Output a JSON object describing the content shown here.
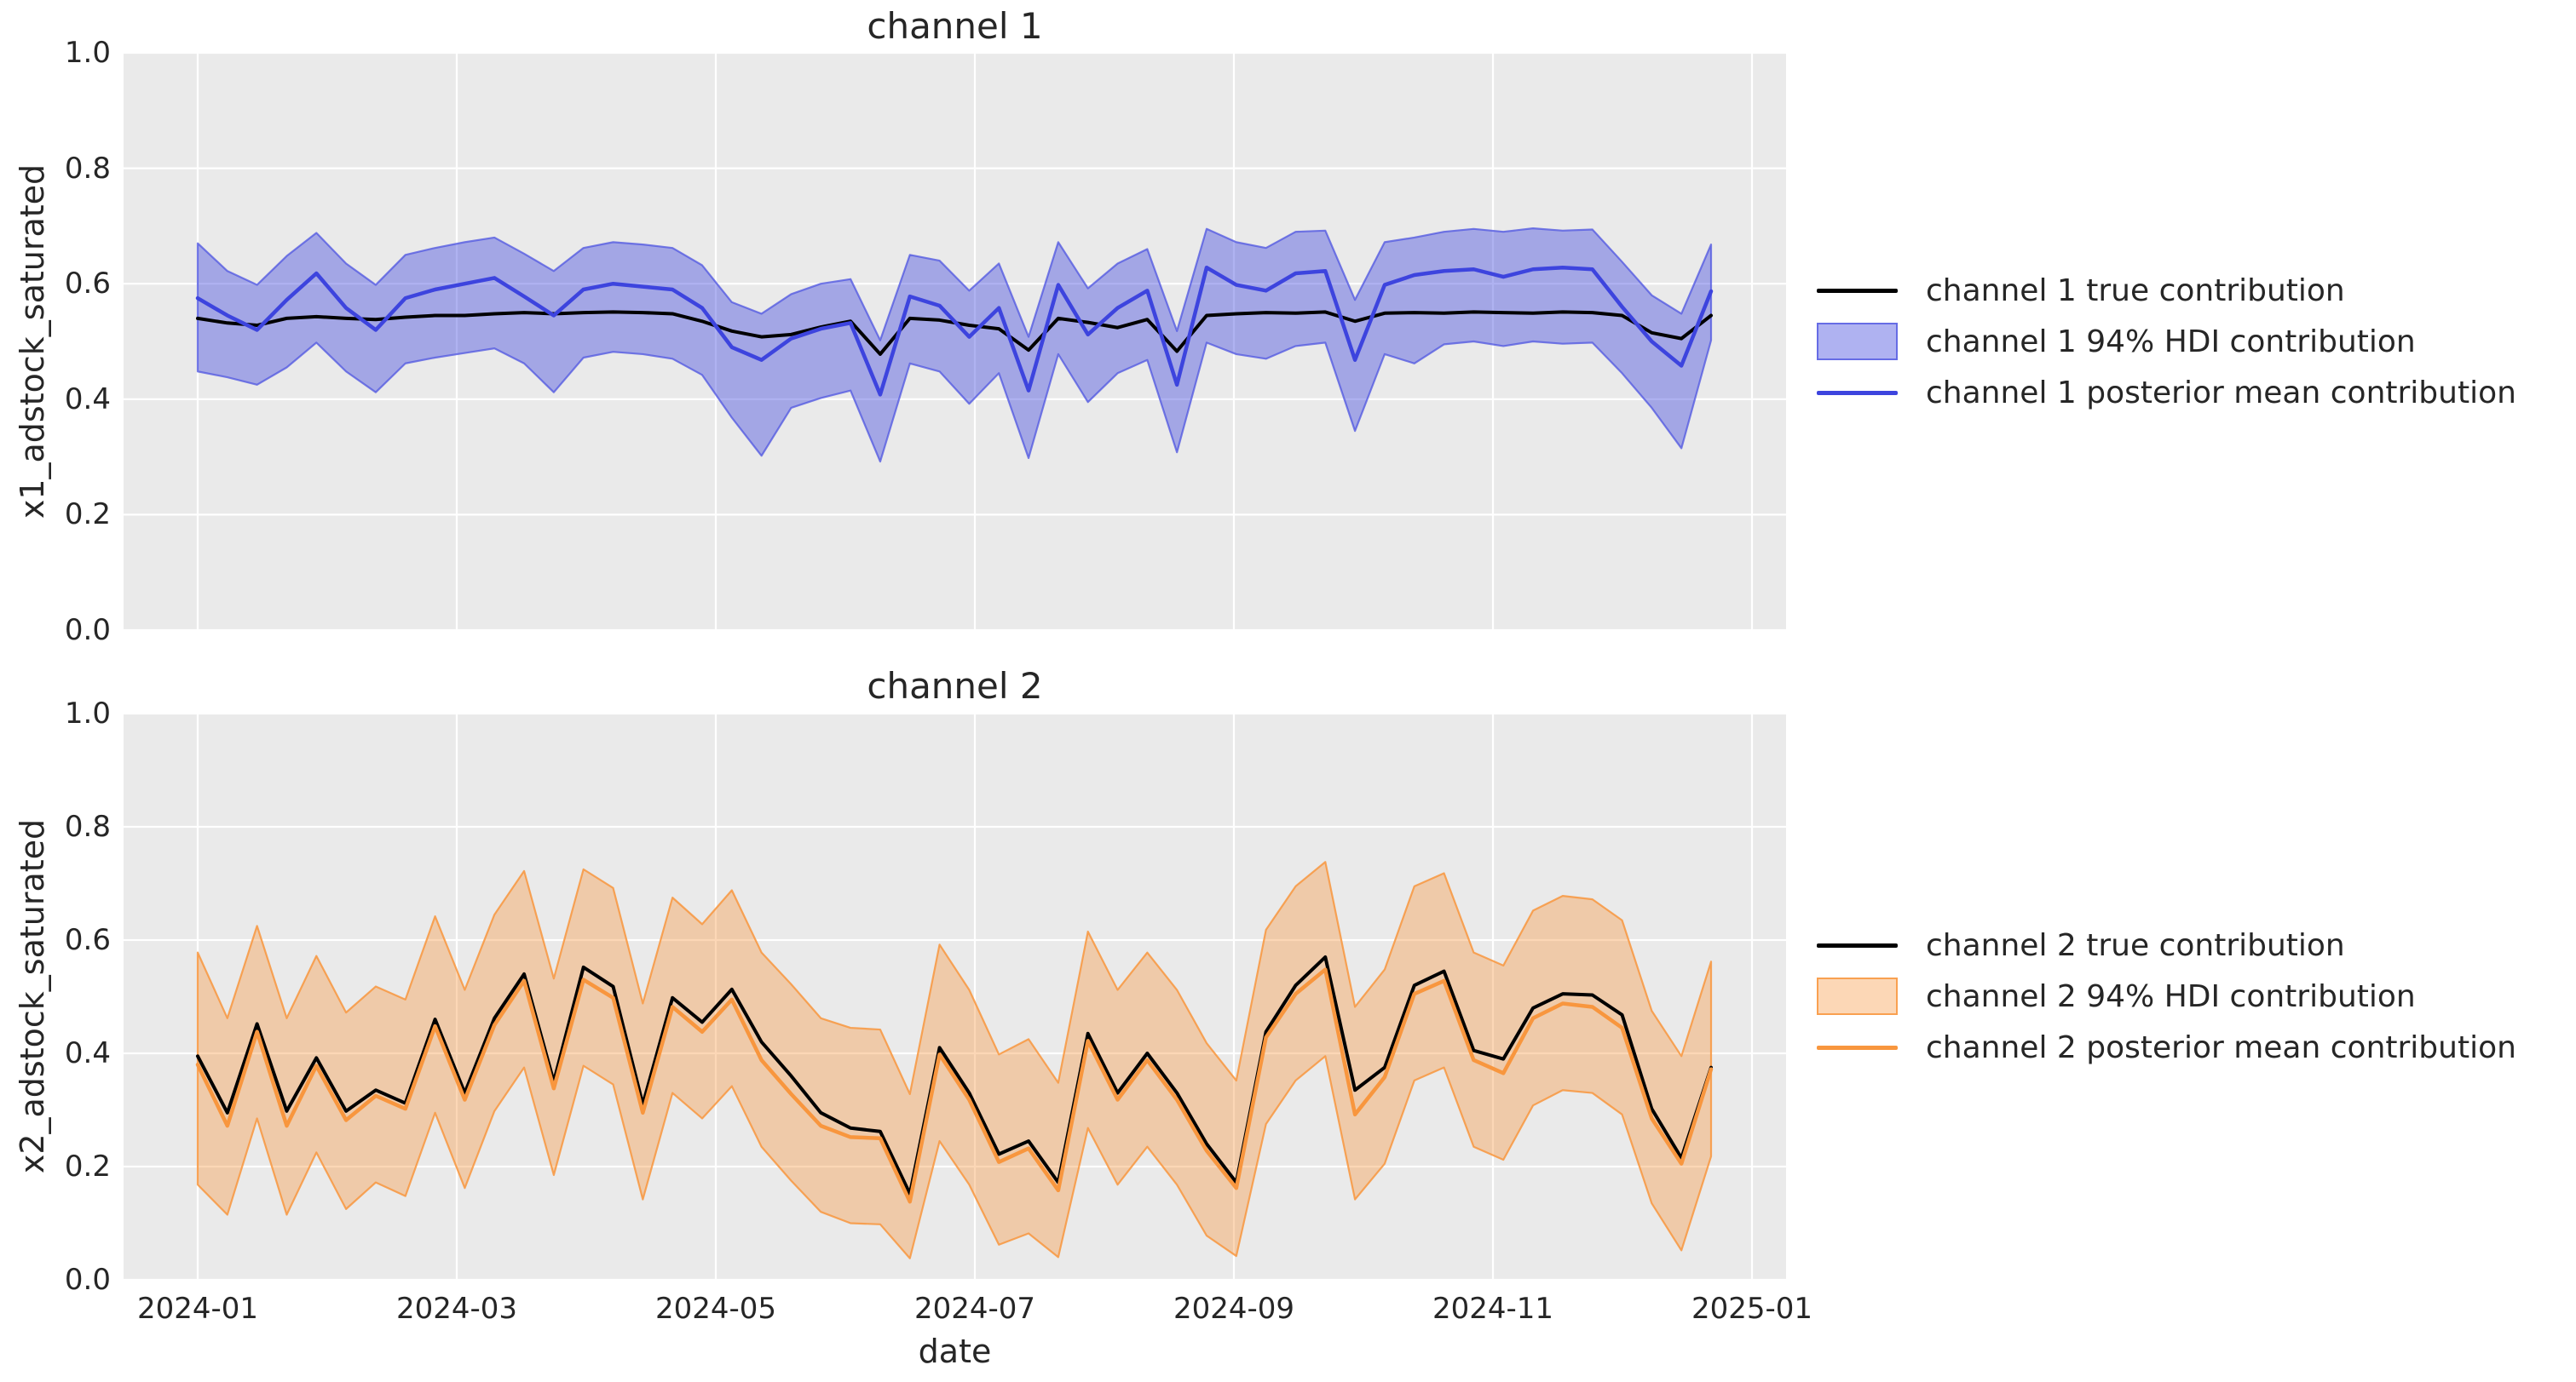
{
  "figure": {
    "background": "#ffffff",
    "axes_background": "#eaeaea",
    "grid_color": "#ffffff",
    "text_color": "#262626"
  },
  "x_axis": {
    "label": "date",
    "tick_labels": [
      "2024-01",
      "2024-03",
      "2024-05",
      "2024-07",
      "2024-09",
      "2024-11",
      "2025-01"
    ]
  },
  "y_axis": {
    "tick_labels": [
      "0.0",
      "0.2",
      "0.4",
      "0.6",
      "0.8",
      "1.0"
    ]
  },
  "chart_data": [
    {
      "type": "line",
      "title": "channel 1",
      "ylabel": "x1_adstock_saturated",
      "xlabel": "",
      "ylim": [
        0.0,
        1.0
      ],
      "grid": true,
      "legend_position": "center right outside",
      "xticks": [
        "2024-01",
        "2024-03",
        "2024-05",
        "2024-07",
        "2024-09",
        "2024-11",
        "2025-01"
      ],
      "yticks": [
        "0.0",
        "0.2",
        "0.4",
        "0.6",
        "0.8",
        "1.0"
      ],
      "x": [
        "2024-01-01",
        "2024-01-08",
        "2024-01-15",
        "2024-01-22",
        "2024-01-29",
        "2024-02-05",
        "2024-02-12",
        "2024-02-19",
        "2024-02-26",
        "2024-03-04",
        "2024-03-11",
        "2024-03-18",
        "2024-03-25",
        "2024-04-01",
        "2024-04-08",
        "2024-04-15",
        "2024-04-22",
        "2024-04-29",
        "2024-05-06",
        "2024-05-13",
        "2024-05-20",
        "2024-05-27",
        "2024-06-03",
        "2024-06-10",
        "2024-06-17",
        "2024-06-24",
        "2024-07-01",
        "2024-07-08",
        "2024-07-15",
        "2024-07-22",
        "2024-07-29",
        "2024-08-05",
        "2024-08-12",
        "2024-08-19",
        "2024-08-26",
        "2024-09-02",
        "2024-09-09",
        "2024-09-16",
        "2024-09-23",
        "2024-09-30",
        "2024-10-07",
        "2024-10-14",
        "2024-10-21",
        "2024-10-28",
        "2024-11-04",
        "2024-11-11",
        "2024-11-18",
        "2024-11-25",
        "2024-12-02",
        "2024-12-09",
        "2024-12-16",
        "2024-12-23"
      ],
      "series": [
        {
          "name": "channel 1 true contribution",
          "kind": "line",
          "color": "#000000",
          "values": [
            0.54,
            0.532,
            0.528,
            0.54,
            0.543,
            0.54,
            0.538,
            0.542,
            0.545,
            0.545,
            0.548,
            0.55,
            0.548,
            0.55,
            0.551,
            0.55,
            0.548,
            0.535,
            0.518,
            0.508,
            0.512,
            0.525,
            0.535,
            0.478,
            0.54,
            0.537,
            0.528,
            0.522,
            0.485,
            0.54,
            0.533,
            0.524,
            0.538,
            0.483,
            0.545,
            0.548,
            0.55,
            0.549,
            0.551,
            0.535,
            0.549,
            0.55,
            0.549,
            0.551,
            0.55,
            0.549,
            0.551,
            0.55,
            0.545,
            0.515,
            0.505,
            0.545
          ]
        },
        {
          "name": "channel 1 94% HDI contribution",
          "kind": "band",
          "fill_color": "rgba(77,84,224,0.45)",
          "edge_color": "rgba(77,84,224,0.75)",
          "lower": [
            0.448,
            0.438,
            0.425,
            0.455,
            0.498,
            0.448,
            0.412,
            0.462,
            0.472,
            0.48,
            0.488,
            0.462,
            0.412,
            0.472,
            0.482,
            0.478,
            0.47,
            0.442,
            0.368,
            0.302,
            0.385,
            0.402,
            0.415,
            0.292,
            0.462,
            0.448,
            0.392,
            0.445,
            0.298,
            0.478,
            0.395,
            0.445,
            0.468,
            0.308,
            0.498,
            0.478,
            0.47,
            0.492,
            0.498,
            0.345,
            0.478,
            0.462,
            0.495,
            0.5,
            0.492,
            0.5,
            0.496,
            0.498,
            0.445,
            0.385,
            0.315,
            0.502
          ],
          "upper": [
            0.67,
            0.622,
            0.598,
            0.648,
            0.688,
            0.635,
            0.598,
            0.65,
            0.662,
            0.672,
            0.68,
            0.652,
            0.622,
            0.662,
            0.672,
            0.668,
            0.662,
            0.632,
            0.568,
            0.548,
            0.582,
            0.6,
            0.608,
            0.502,
            0.65,
            0.64,
            0.588,
            0.635,
            0.508,
            0.672,
            0.592,
            0.635,
            0.66,
            0.518,
            0.695,
            0.672,
            0.662,
            0.69,
            0.692,
            0.572,
            0.672,
            0.68,
            0.69,
            0.695,
            0.69,
            0.696,
            0.692,
            0.694,
            0.638,
            0.58,
            0.548,
            0.668
          ]
        },
        {
          "name": "channel 1 posterior mean contribution",
          "kind": "line",
          "color": "#3d44de",
          "values": [
            0.575,
            0.545,
            0.52,
            0.572,
            0.618,
            0.558,
            0.52,
            0.575,
            0.59,
            0.6,
            0.61,
            0.578,
            0.545,
            0.59,
            0.6,
            0.595,
            0.59,
            0.558,
            0.49,
            0.468,
            0.505,
            0.522,
            0.532,
            0.408,
            0.578,
            0.562,
            0.508,
            0.558,
            0.415,
            0.598,
            0.512,
            0.558,
            0.588,
            0.425,
            0.628,
            0.598,
            0.588,
            0.618,
            0.622,
            0.468,
            0.598,
            0.615,
            0.622,
            0.625,
            0.612,
            0.625,
            0.628,
            0.625,
            0.56,
            0.5,
            0.458,
            0.587
          ]
        }
      ]
    },
    {
      "type": "line",
      "title": "channel 2",
      "ylabel": "x2_adstock_saturated",
      "xlabel": "date",
      "ylim": [
        0.0,
        1.0
      ],
      "grid": true,
      "legend_position": "center right outside",
      "xticks": [
        "2024-01",
        "2024-03",
        "2024-05",
        "2024-07",
        "2024-09",
        "2024-11",
        "2025-01"
      ],
      "yticks": [
        "0.0",
        "0.2",
        "0.4",
        "0.6",
        "0.8",
        "1.0"
      ],
      "x": [
        "2024-01-01",
        "2024-01-08",
        "2024-01-15",
        "2024-01-22",
        "2024-01-29",
        "2024-02-05",
        "2024-02-12",
        "2024-02-19",
        "2024-02-26",
        "2024-03-04",
        "2024-03-11",
        "2024-03-18",
        "2024-03-25",
        "2024-04-01",
        "2024-04-08",
        "2024-04-15",
        "2024-04-22",
        "2024-04-29",
        "2024-05-06",
        "2024-05-13",
        "2024-05-20",
        "2024-05-27",
        "2024-06-03",
        "2024-06-10",
        "2024-06-17",
        "2024-06-24",
        "2024-07-01",
        "2024-07-08",
        "2024-07-15",
        "2024-07-22",
        "2024-07-29",
        "2024-08-05",
        "2024-08-12",
        "2024-08-19",
        "2024-08-26",
        "2024-09-02",
        "2024-09-09",
        "2024-09-16",
        "2024-09-23",
        "2024-09-30",
        "2024-10-07",
        "2024-10-14",
        "2024-10-21",
        "2024-10-28",
        "2024-11-04",
        "2024-11-11",
        "2024-11-18",
        "2024-11-25",
        "2024-12-02",
        "2024-12-09",
        "2024-12-16",
        "2024-12-23"
      ],
      "series": [
        {
          "name": "channel 2 true contribution",
          "kind": "line",
          "color": "#000000",
          "values": [
            0.395,
            0.295,
            0.452,
            0.298,
            0.392,
            0.298,
            0.335,
            0.312,
            0.46,
            0.33,
            0.462,
            0.54,
            0.35,
            0.552,
            0.518,
            0.31,
            0.498,
            0.455,
            0.513,
            0.42,
            0.36,
            0.295,
            0.268,
            0.262,
            0.152,
            0.41,
            0.33,
            0.222,
            0.245,
            0.172,
            0.435,
            0.33,
            0.4,
            0.33,
            0.24,
            0.172,
            0.438,
            0.52,
            0.57,
            0.335,
            0.375,
            0.52,
            0.545,
            0.405,
            0.39,
            0.48,
            0.505,
            0.503,
            0.468,
            0.302,
            0.215,
            0.375
          ]
        },
        {
          "name": "channel 2 94% HDI contribution",
          "kind": "band",
          "fill_color": "rgba(248,150,62,0.38)",
          "edge_color": "rgba(248,150,62,0.85)",
          "lower": [
            0.168,
            0.115,
            0.285,
            0.115,
            0.225,
            0.125,
            0.172,
            0.148,
            0.295,
            0.162,
            0.298,
            0.375,
            0.185,
            0.378,
            0.345,
            0.142,
            0.33,
            0.285,
            0.342,
            0.235,
            0.175,
            0.12,
            0.1,
            0.098,
            0.038,
            0.245,
            0.168,
            0.062,
            0.082,
            0.04,
            0.268,
            0.168,
            0.235,
            0.168,
            0.078,
            0.042,
            0.275,
            0.352,
            0.395,
            0.142,
            0.205,
            0.352,
            0.375,
            0.235,
            0.212,
            0.308,
            0.335,
            0.33,
            0.292,
            0.135,
            0.052,
            0.218
          ],
          "upper": [
            0.578,
            0.462,
            0.625,
            0.462,
            0.572,
            0.472,
            0.518,
            0.495,
            0.642,
            0.512,
            0.645,
            0.722,
            0.532,
            0.725,
            0.692,
            0.488,
            0.675,
            0.628,
            0.688,
            0.578,
            0.522,
            0.462,
            0.445,
            0.442,
            0.328,
            0.592,
            0.512,
            0.398,
            0.425,
            0.348,
            0.615,
            0.512,
            0.578,
            0.512,
            0.418,
            0.352,
            0.618,
            0.695,
            0.738,
            0.482,
            0.548,
            0.695,
            0.718,
            0.578,
            0.555,
            0.652,
            0.678,
            0.672,
            0.635,
            0.475,
            0.395,
            0.562
          ]
        },
        {
          "name": "channel 2 posterior mean contribution",
          "kind": "line",
          "color": "#f8963e",
          "values": [
            0.38,
            0.272,
            0.438,
            0.272,
            0.378,
            0.282,
            0.325,
            0.302,
            0.448,
            0.318,
            0.45,
            0.528,
            0.338,
            0.53,
            0.498,
            0.295,
            0.482,
            0.438,
            0.495,
            0.388,
            0.328,
            0.272,
            0.252,
            0.25,
            0.138,
            0.398,
            0.318,
            0.208,
            0.232,
            0.158,
            0.422,
            0.318,
            0.388,
            0.318,
            0.228,
            0.162,
            0.428,
            0.505,
            0.548,
            0.292,
            0.358,
            0.505,
            0.528,
            0.388,
            0.365,
            0.462,
            0.488,
            0.482,
            0.445,
            0.285,
            0.205,
            0.372
          ]
        }
      ]
    }
  ]
}
